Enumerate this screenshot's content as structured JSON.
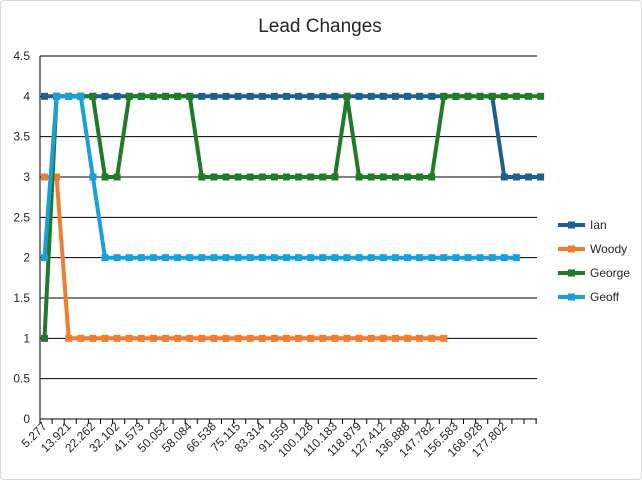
{
  "chart_data": {
    "type": "line",
    "title": "Lead Changes",
    "xlabel": "",
    "ylabel": "",
    "ylim": [
      0,
      4.5
    ],
    "ytick_step": 0.5,
    "yticks": [
      "0",
      "0.5",
      "1",
      "1.5",
      "2",
      "2.5",
      "3",
      "3.5",
      "4",
      "4.5"
    ],
    "grid": true,
    "legend_position": "right",
    "x_tick_labels": [
      "5.277",
      "13.921",
      "22.262",
      "32.102",
      "41.573",
      "50.052",
      "58.084",
      "66.538",
      "75.115",
      "83.314",
      "91.559",
      "100.128",
      "110.183",
      "118.879",
      "127.412",
      "136.888",
      "147.782",
      "156.583",
      "168.928",
      "177.802"
    ],
    "series": [
      {
        "name": "Ian",
        "color": "#1f5f8b",
        "values": [
          4,
          4,
          4,
          4,
          4,
          4,
          4,
          4,
          4,
          4,
          4,
          4,
          4,
          4,
          4,
          4,
          4,
          4,
          4,
          4,
          4,
          4,
          4,
          4,
          4,
          4,
          4,
          4,
          4,
          4,
          4,
          4,
          4,
          4,
          4,
          4,
          4,
          4,
          3,
          3,
          3,
          3
        ]
      },
      {
        "name": "Woody",
        "color": "#ed7d31",
        "values": [
          3,
          3,
          1,
          1,
          1,
          1,
          1,
          1,
          1,
          1,
          1,
          1,
          1,
          1,
          1,
          1,
          1,
          1,
          1,
          1,
          1,
          1,
          1,
          1,
          1,
          1,
          1,
          1,
          1,
          1,
          1,
          1,
          1,
          1
        ]
      },
      {
        "name": "George",
        "color": "#217a2a",
        "values": [
          1,
          4,
          4,
          4,
          4,
          3,
          3,
          4,
          4,
          4,
          4,
          4,
          4,
          3,
          3,
          3,
          3,
          3,
          3,
          3,
          3,
          3,
          3,
          3,
          3,
          4,
          3,
          3,
          3,
          3,
          3,
          3,
          3,
          4,
          4,
          4,
          4,
          4,
          4,
          4,
          4,
          4
        ]
      },
      {
        "name": "Geoff",
        "color": "#1aa0d8",
        "values": [
          2,
          4,
          4,
          4,
          3,
          2,
          2,
          2,
          2,
          2,
          2,
          2,
          2,
          2,
          2,
          2,
          2,
          2,
          2,
          2,
          2,
          2,
          2,
          2,
          2,
          2,
          2,
          2,
          2,
          2,
          2,
          2,
          2,
          2,
          2,
          2,
          2,
          2,
          2,
          2
        ]
      }
    ]
  }
}
